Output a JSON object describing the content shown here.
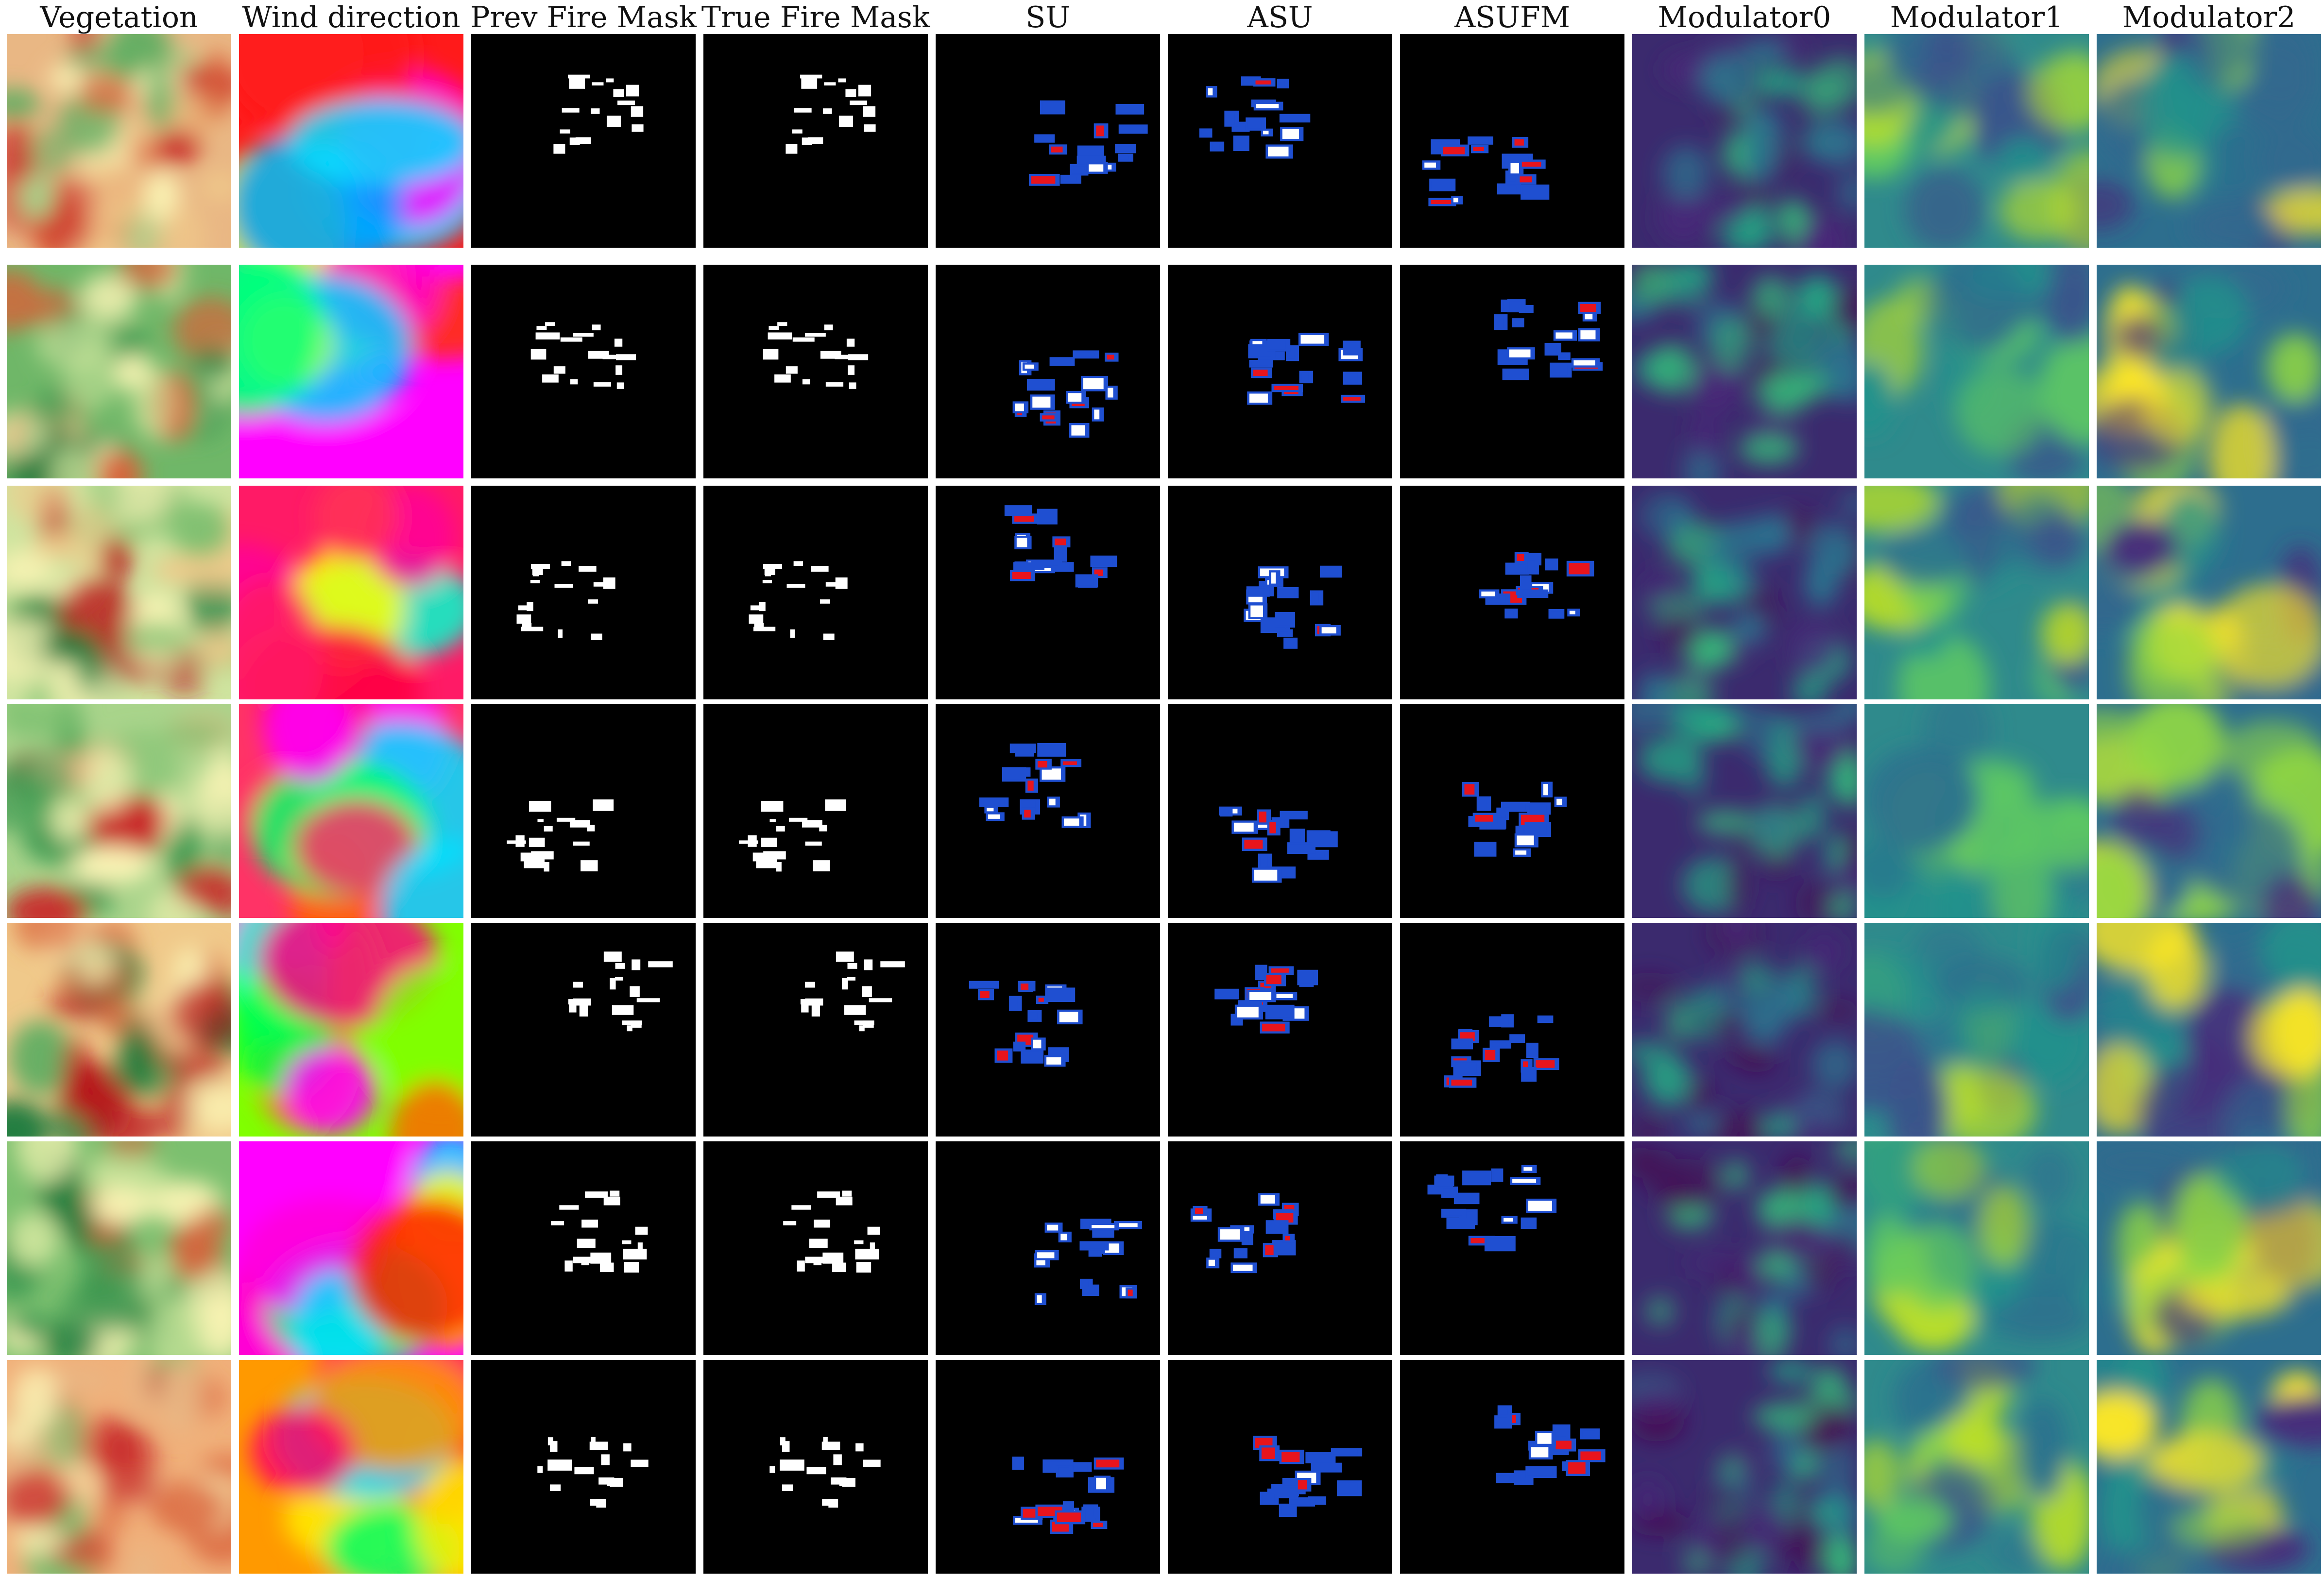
{
  "figure": {
    "columns": [
      {
        "key": "vegetation",
        "title": "Vegetation",
        "kind": "vegetation"
      },
      {
        "key": "wind",
        "title": "Wind direction",
        "kind": "wind"
      },
      {
        "key": "prev",
        "title": "Prev Fire Mask",
        "kind": "mask"
      },
      {
        "key": "true",
        "title": "True Fire Mask",
        "kind": "mask"
      },
      {
        "key": "su",
        "title": "SU",
        "kind": "pred"
      },
      {
        "key": "asu",
        "title": "ASU",
        "kind": "pred"
      },
      {
        "key": "asufm",
        "title": "ASUFM",
        "kind": "pred"
      },
      {
        "key": "mod0",
        "title": "Modulator0",
        "kind": "modulator"
      },
      {
        "key": "mod1",
        "title": "Modulator1",
        "kind": "modulator"
      },
      {
        "key": "mod2",
        "title": "Modulator2",
        "kind": "modulator"
      }
    ],
    "rows": 7,
    "colors": {
      "background": "#ffffff",
      "mask_background": "#000000",
      "fire": "#ffffff",
      "false_positive": "#1f4fd1",
      "false_negative": "#e8141c",
      "vegetation_low": "#fbf4b5",
      "vegetation_high_green": "#1a7a3c",
      "vegetation_high_red": "#b8161c",
      "modulator_low": "#440d54",
      "modulator_mid": "#21918c",
      "modulator_high": "#f0e61c"
    },
    "colormaps": {
      "vegetation": "RdYlGn",
      "wind": "hsv",
      "modulator": "viridis"
    }
  }
}
